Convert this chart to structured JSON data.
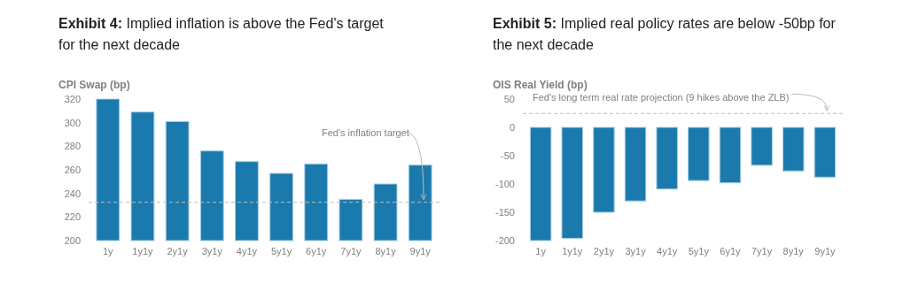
{
  "chart_data": [
    {
      "type": "bar",
      "title": "Exhibit 4: Implied inflation is above the Fed's target for the next decade",
      "ylabel": "CPI Swap (bp)",
      "categories": [
        "1y",
        "1y1y",
        "2y1y",
        "3y1y",
        "4y1y",
        "5y1y",
        "6y1y",
        "7y1y",
        "8y1y",
        "9y1y"
      ],
      "values": [
        320,
        309,
        301,
        276,
        267,
        257,
        265,
        235,
        248,
        264
      ],
      "color": "#1a7aad",
      "ylim": [
        200,
        320
      ],
      "yticks": [
        200,
        220,
        240,
        260,
        280,
        300,
        320
      ],
      "grid": false,
      "ref_lines": [
        {
          "axis": "y",
          "value": 232.5,
          "label": "Fed's inflation target",
          "color": "#bfbfbf",
          "line_style": "dashed"
        }
      ]
    },
    {
      "type": "bar",
      "title": "Exhibit 5: Implied real policy rates are below -50bp for the next decade",
      "ylabel": "OIS Real Yield (bp)",
      "categories": [
        "1y",
        "1y1y",
        "2y1y",
        "3y1y",
        "4y1y",
        "5y1y",
        "6y1y",
        "7y1y",
        "8y1y",
        "9y1y"
      ],
      "values": [
        -200,
        -196,
        -150,
        -130,
        -109,
        -94,
        -98,
        -67,
        -77,
        -88
      ],
      "color": "#1a7aad",
      "ylim": [
        -200,
        50
      ],
      "yticks": [
        -200,
        -150,
        -100,
        -50,
        0,
        50
      ],
      "grid": false,
      "ref_lines": [
        {
          "axis": "y",
          "value": 24.5,
          "label": "Fed's long term real rate projection (9 hikes above the ZLB)",
          "color": "#bfbfbf",
          "line_style": "dashed"
        }
      ]
    }
  ]
}
